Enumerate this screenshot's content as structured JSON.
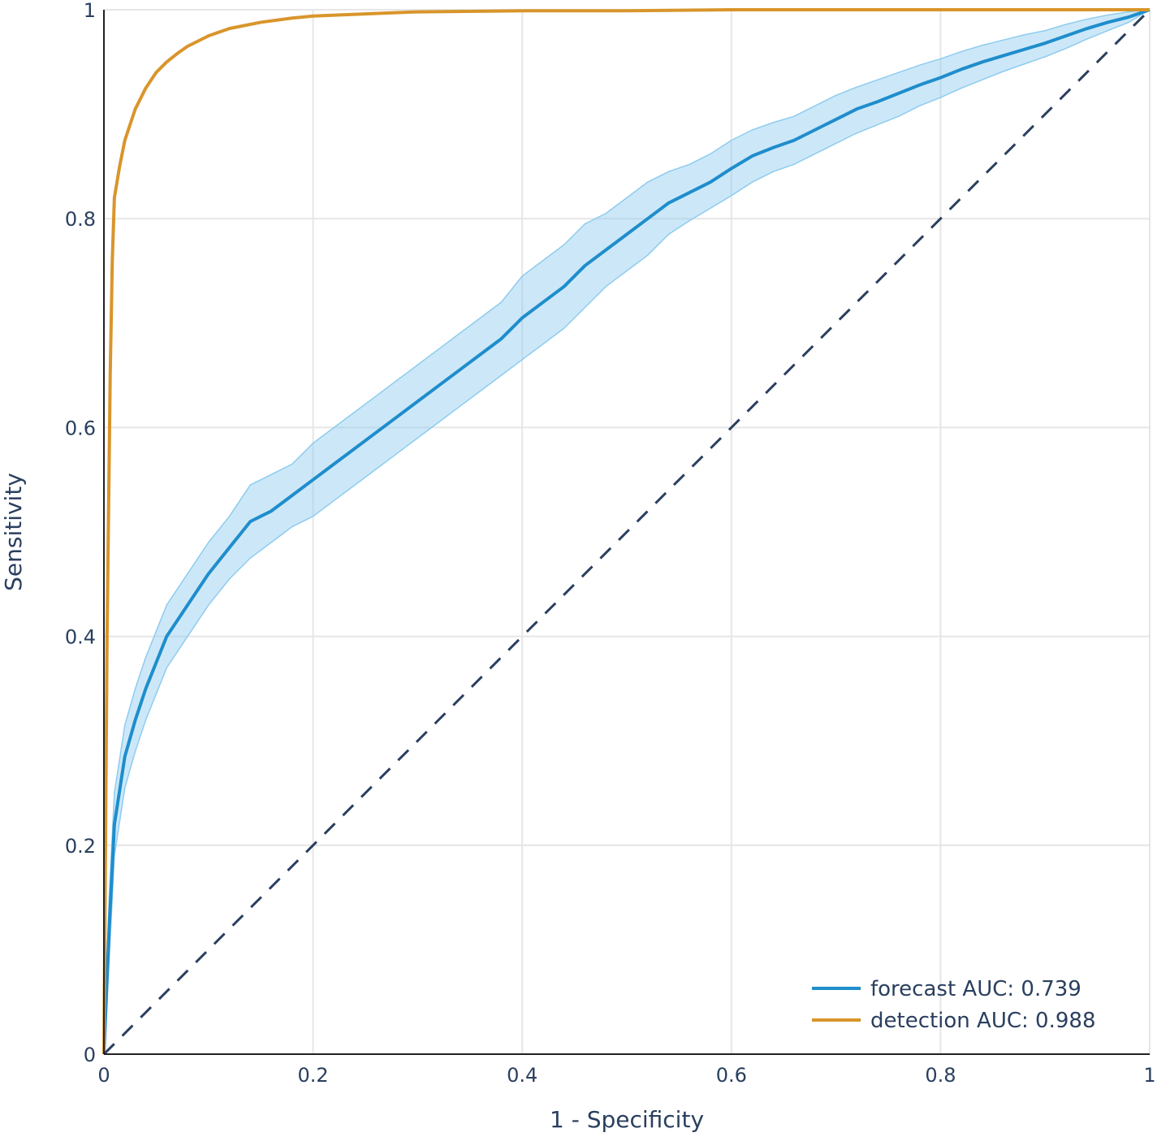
{
  "chart_data": {
    "type": "line",
    "title": "",
    "xlabel": "1 - Specificity",
    "ylabel": "Sensitivity",
    "xlim": [
      0,
      1
    ],
    "ylim": [
      0,
      1
    ],
    "xticks": [
      "0",
      "0.2",
      "0.4",
      "0.6",
      "0.8",
      "1"
    ],
    "yticks": [
      "0",
      "0.2",
      "0.4",
      "0.6",
      "0.8",
      "1"
    ],
    "grid": true,
    "legend_position": "bottom-right",
    "series": [
      {
        "name": "forecast AUC: 0.739",
        "color": "#1f8dcc",
        "band_color": "#8ecbef",
        "x": [
          0,
          0.005,
          0.01,
          0.02,
          0.03,
          0.04,
          0.05,
          0.06,
          0.08,
          0.1,
          0.12,
          0.14,
          0.16,
          0.18,
          0.2,
          0.22,
          0.24,
          0.26,
          0.28,
          0.3,
          0.32,
          0.34,
          0.36,
          0.38,
          0.4,
          0.42,
          0.44,
          0.46,
          0.48,
          0.5,
          0.52,
          0.54,
          0.56,
          0.58,
          0.6,
          0.62,
          0.64,
          0.66,
          0.68,
          0.7,
          0.72,
          0.74,
          0.76,
          0.78,
          0.8,
          0.82,
          0.84,
          0.86,
          0.88,
          0.9,
          0.92,
          0.94,
          0.96,
          0.98,
          1.0
        ],
        "y": [
          0,
          0.12,
          0.22,
          0.285,
          0.32,
          0.35,
          0.375,
          0.4,
          0.43,
          0.46,
          0.485,
          0.51,
          0.52,
          0.535,
          0.55,
          0.565,
          0.58,
          0.595,
          0.61,
          0.625,
          0.64,
          0.655,
          0.67,
          0.685,
          0.705,
          0.72,
          0.735,
          0.755,
          0.77,
          0.785,
          0.8,
          0.815,
          0.825,
          0.835,
          0.848,
          0.86,
          0.868,
          0.875,
          0.885,
          0.895,
          0.905,
          0.912,
          0.92,
          0.928,
          0.935,
          0.943,
          0.95,
          0.956,
          0.962,
          0.968,
          0.975,
          0.982,
          0.988,
          0.993,
          1.0
        ],
        "lower": [
          0,
          0.09,
          0.19,
          0.255,
          0.29,
          0.32,
          0.345,
          0.37,
          0.4,
          0.43,
          0.455,
          0.475,
          0.49,
          0.505,
          0.515,
          0.53,
          0.545,
          0.56,
          0.575,
          0.59,
          0.605,
          0.62,
          0.635,
          0.65,
          0.665,
          0.68,
          0.695,
          0.715,
          0.735,
          0.75,
          0.765,
          0.785,
          0.798,
          0.81,
          0.822,
          0.835,
          0.845,
          0.852,
          0.862,
          0.872,
          0.882,
          0.89,
          0.898,
          0.908,
          0.916,
          0.925,
          0.933,
          0.941,
          0.948,
          0.955,
          0.963,
          0.972,
          0.98,
          0.988,
          1.0
        ],
        "upper": [
          0,
          0.15,
          0.25,
          0.315,
          0.35,
          0.38,
          0.405,
          0.43,
          0.46,
          0.49,
          0.515,
          0.545,
          0.555,
          0.565,
          0.585,
          0.6,
          0.615,
          0.63,
          0.645,
          0.66,
          0.675,
          0.69,
          0.705,
          0.72,
          0.745,
          0.76,
          0.775,
          0.795,
          0.805,
          0.82,
          0.835,
          0.845,
          0.852,
          0.862,
          0.875,
          0.885,
          0.892,
          0.898,
          0.908,
          0.918,
          0.926,
          0.933,
          0.94,
          0.947,
          0.953,
          0.96,
          0.966,
          0.971,
          0.976,
          0.98,
          0.986,
          0.991,
          0.995,
          0.998,
          1.0
        ]
      },
      {
        "name": "detection AUC: 0.988",
        "color": "#d9952b",
        "x": [
          0,
          0.003,
          0.006,
          0.008,
          0.01,
          0.015,
          0.02,
          0.03,
          0.04,
          0.05,
          0.06,
          0.07,
          0.08,
          0.1,
          0.12,
          0.15,
          0.18,
          0.2,
          0.25,
          0.3,
          0.4,
          0.5,
          0.6,
          0.8,
          1.0
        ],
        "y": [
          0,
          0.4,
          0.65,
          0.76,
          0.82,
          0.85,
          0.875,
          0.905,
          0.925,
          0.94,
          0.95,
          0.958,
          0.965,
          0.975,
          0.982,
          0.988,
          0.992,
          0.994,
          0.996,
          0.998,
          0.999,
          0.999,
          1.0,
          1.0,
          1.0
        ]
      },
      {
        "color": "#2a3f5f",
        "dash": true,
        "x": [
          0,
          1
        ],
        "y": [
          0,
          1
        ]
      }
    ]
  }
}
